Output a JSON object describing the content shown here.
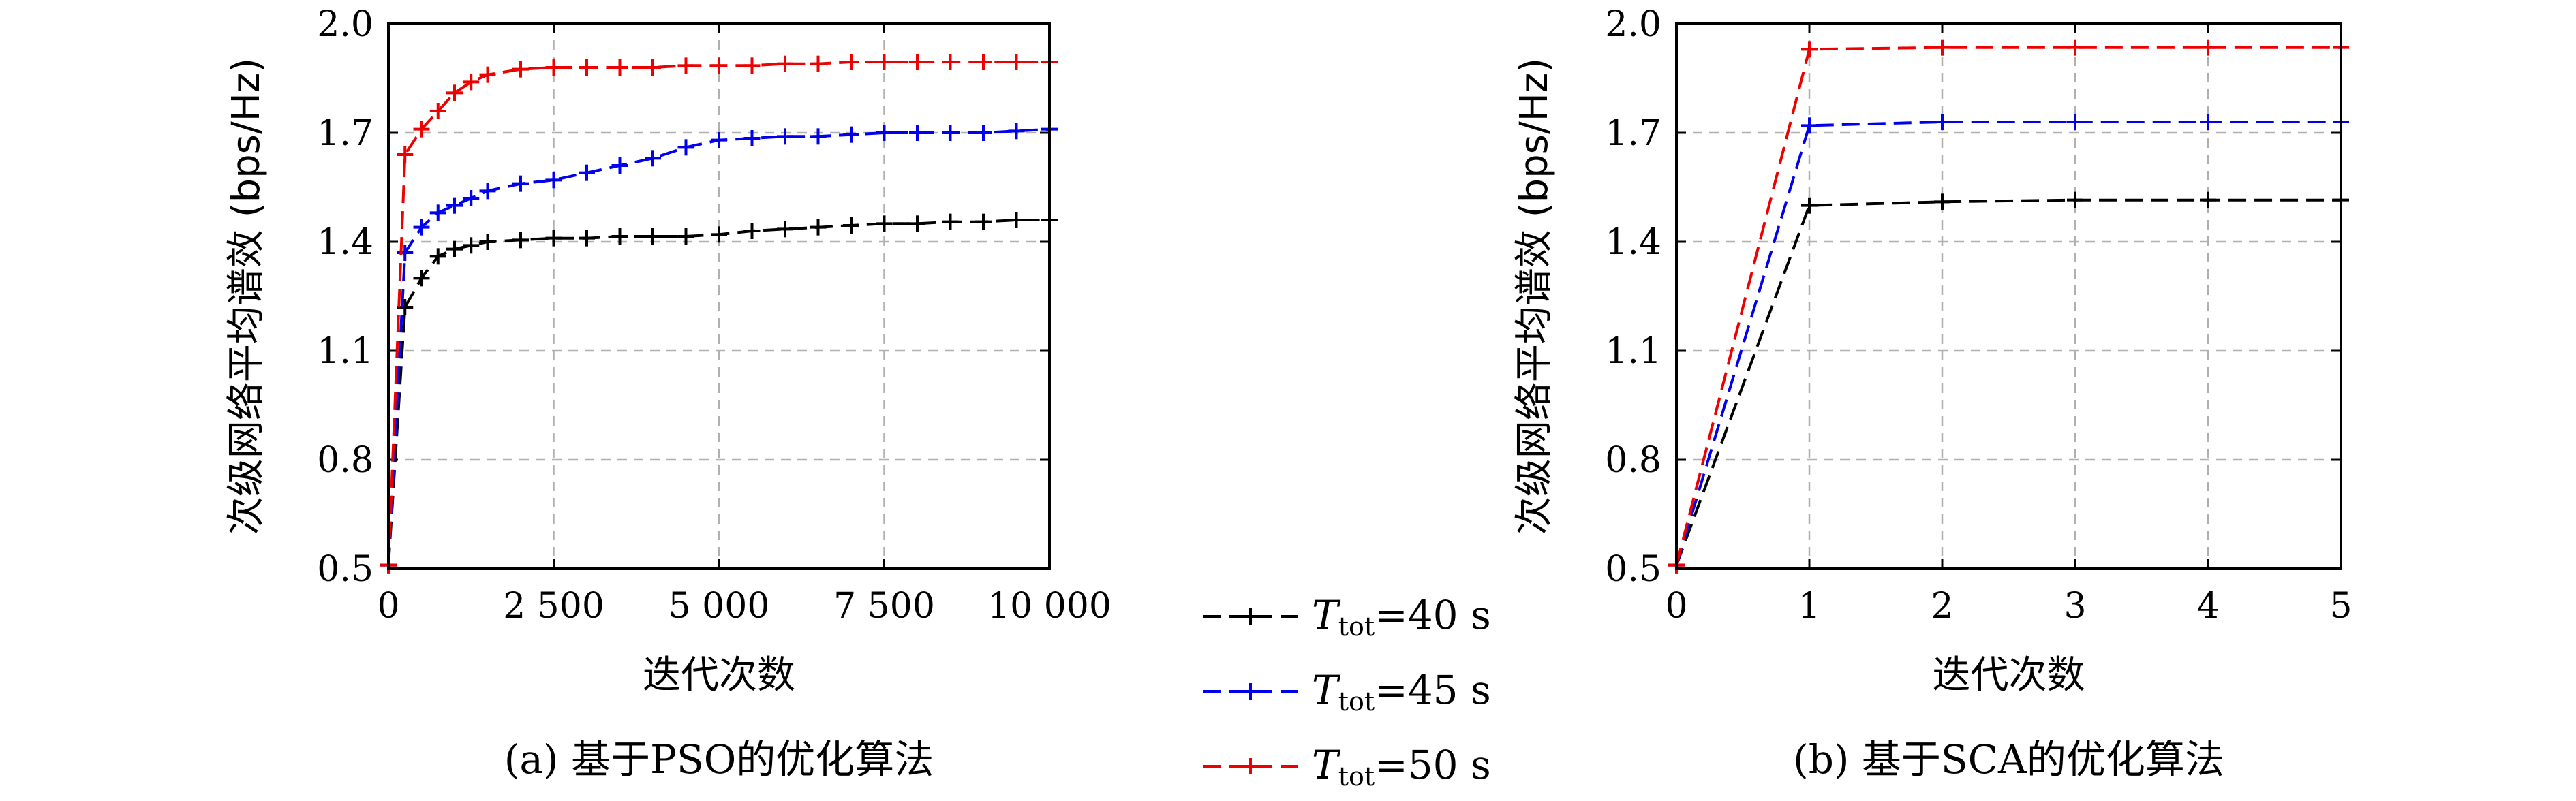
{
  "colors": {
    "s40": "#000000",
    "s45": "#0000ee",
    "s50": "#ee0000",
    "grid": "#b0b0b0"
  },
  "legend": {
    "placement": "center-between-panels",
    "entries": [
      {
        "T": "T",
        "sub": "tot",
        "value": "=40 s",
        "color": "#000000"
      },
      {
        "T": "T",
        "sub": "tot",
        "value": "=45 s",
        "color": "#0000ee"
      },
      {
        "T": "T",
        "sub": "tot",
        "value": "=50 s",
        "color": "#ee0000"
      }
    ]
  },
  "chart_data": [
    {
      "type": "line",
      "caption": "(a) 基于PSO的优化算法",
      "xlabel": "迭代次数",
      "ylabel": "次级网络平均谱效 (bps/Hz)",
      "xlim": [
        0,
        10000
      ],
      "ylim": [
        0.5,
        2.0
      ],
      "xticks": [
        0,
        2500,
        5000,
        7500,
        10000
      ],
      "xtick_labels": [
        "0",
        "2 500",
        "5 000",
        "7 500",
        "10 000"
      ],
      "yticks": [
        0.5,
        0.8,
        1.1,
        1.4,
        1.7,
        2.0
      ],
      "ytick_labels": [
        "0.5",
        "0.8",
        "1.1",
        "1.4",
        "1.7",
        "2.0"
      ],
      "grid": true,
      "series": [
        {
          "name": "T_tot=40 s",
          "color": "#000000",
          "x": [
            0,
            250,
            500,
            750,
            1000,
            1250,
            1500,
            2000,
            2500,
            3000,
            3500,
            4000,
            4500,
            5000,
            5500,
            6000,
            6500,
            7000,
            7500,
            8000,
            8500,
            9000,
            9500,
            10000
          ],
          "y": [
            0.51,
            1.22,
            1.3,
            1.36,
            1.38,
            1.39,
            1.4,
            1.405,
            1.41,
            1.41,
            1.415,
            1.415,
            1.415,
            1.42,
            1.43,
            1.435,
            1.44,
            1.445,
            1.45,
            1.45,
            1.455,
            1.455,
            1.46,
            1.46
          ]
        },
        {
          "name": "T_tot=45 s",
          "color": "#0000ee",
          "x": [
            0,
            250,
            500,
            750,
            1000,
            1250,
            1500,
            2000,
            2500,
            3000,
            3500,
            4000,
            4500,
            5000,
            5500,
            6000,
            6500,
            7000,
            7500,
            8000,
            8500,
            9000,
            9500,
            10000
          ],
          "y": [
            0.51,
            1.37,
            1.44,
            1.48,
            1.5,
            1.52,
            1.54,
            1.56,
            1.57,
            1.59,
            1.61,
            1.63,
            1.66,
            1.68,
            1.685,
            1.69,
            1.69,
            1.695,
            1.7,
            1.7,
            1.7,
            1.7,
            1.705,
            1.71
          ]
        },
        {
          "name": "T_tot=50 s",
          "color": "#ee0000",
          "x": [
            0,
            250,
            500,
            750,
            1000,
            1250,
            1500,
            2000,
            2500,
            3000,
            3500,
            4000,
            4500,
            5000,
            5500,
            6000,
            6500,
            7000,
            7500,
            8000,
            8500,
            9000,
            9500,
            10000
          ],
          "y": [
            0.51,
            1.64,
            1.71,
            1.76,
            1.81,
            1.84,
            1.86,
            1.875,
            1.88,
            1.88,
            1.88,
            1.88,
            1.885,
            1.885,
            1.885,
            1.89,
            1.89,
            1.895,
            1.895,
            1.895,
            1.895,
            1.895,
            1.895,
            1.895
          ]
        }
      ]
    },
    {
      "type": "line",
      "caption": "(b) 基于SCA的优化算法",
      "xlabel": "迭代次数",
      "ylabel": "次级网络平均谱效 (bps/Hz)",
      "xlim": [
        0,
        5
      ],
      "ylim": [
        0.5,
        2.0
      ],
      "xticks": [
        0,
        1,
        2,
        3,
        4,
        5
      ],
      "xtick_labels": [
        "0",
        "1",
        "2",
        "3",
        "4",
        "5"
      ],
      "yticks": [
        0.5,
        0.8,
        1.1,
        1.4,
        1.7,
        2.0
      ],
      "ytick_labels": [
        "0.5",
        "0.8",
        "1.1",
        "1.4",
        "1.7",
        "2.0"
      ],
      "grid": true,
      "series": [
        {
          "name": "T_tot=40 s",
          "color": "#000000",
          "x": [
            0,
            1,
            2,
            3,
            4,
            5
          ],
          "y": [
            0.51,
            1.5,
            1.51,
            1.515,
            1.515,
            1.515
          ]
        },
        {
          "name": "T_tot=45 s",
          "color": "#0000ee",
          "x": [
            0,
            1,
            2,
            3,
            4,
            5
          ],
          "y": [
            0.51,
            1.72,
            1.73,
            1.73,
            1.73,
            1.73
          ]
        },
        {
          "name": "T_tot=50 s",
          "color": "#ee0000",
          "x": [
            0,
            1,
            2,
            3,
            4,
            5
          ],
          "y": [
            0.51,
            1.93,
            1.935,
            1.935,
            1.935,
            1.935
          ]
        }
      ]
    }
  ]
}
